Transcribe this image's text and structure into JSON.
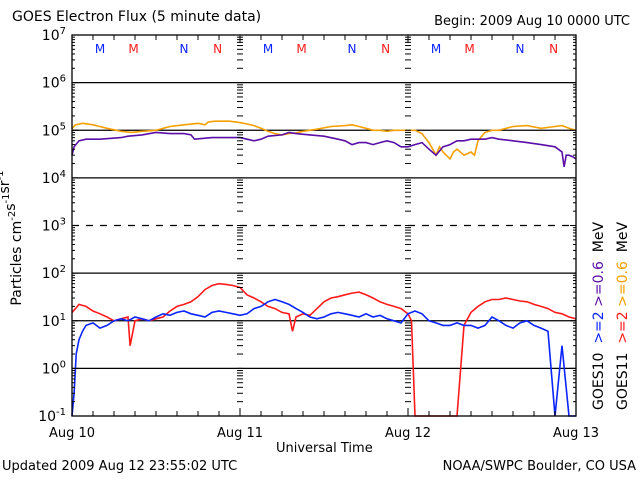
{
  "header": {
    "title": "GOES Electron Flux (5 minute data)",
    "begin": "Begin: 2009 Aug 10 0000 UTC"
  },
  "footer": {
    "updated": "Updated 2009 Aug 12 23:55:02 UTC",
    "credit": "NOAA/SWPC Boulder, CO USA"
  },
  "chart_data": {
    "type": "line",
    "title": "GOES Electron Flux (5 minute data)",
    "xlabel": "Universal Time",
    "ylabel": "Particles cm⁻²s⁻¹sr⁻¹",
    "yscale": "log",
    "ylim": [
      0.1,
      10000000
    ],
    "xlim": [
      0,
      72
    ],
    "x_unit": "hours since 2009 Aug 10 0000 UTC",
    "x_ticks": [
      {
        "x": 0,
        "label": "Aug 10"
      },
      {
        "x": 24,
        "label": "Aug 11"
      },
      {
        "x": 48,
        "label": "Aug 12"
      },
      {
        "x": 72,
        "label": "Aug 13"
      }
    ],
    "y_ticks": [
      {
        "exp": 7,
        "label": "10",
        "sup": "7"
      },
      {
        "exp": 6,
        "label": "10",
        "sup": "6"
      },
      {
        "exp": 5,
        "label": "10",
        "sup": "5"
      },
      {
        "exp": 4,
        "label": "10",
        "sup": "4"
      },
      {
        "exp": 3,
        "label": "10",
        "sup": "3"
      },
      {
        "exp": 2,
        "label": "10",
        "sup": "2"
      },
      {
        "exp": 1,
        "label": "10",
        "sup": "1"
      },
      {
        "exp": 0,
        "label": "10",
        "sup": "0"
      },
      {
        "exp": -1,
        "label": "10",
        "sup": "-1"
      }
    ],
    "grid_exps_solid": [
      6,
      5,
      4,
      2,
      1,
      0
    ],
    "grid_exps_dashed": [
      3
    ],
    "markers": [
      {
        "x": 4.0,
        "label": "M",
        "color": "#0a24ff"
      },
      {
        "x": 8.8,
        "label": "M",
        "color": "#ff1a1a"
      },
      {
        "x": 16.0,
        "label": "N",
        "color": "#0a24ff"
      },
      {
        "x": 20.8,
        "label": "N",
        "color": "#ff1a1a"
      },
      {
        "x": 28.0,
        "label": "M",
        "color": "#0a24ff"
      },
      {
        "x": 32.8,
        "label": "M",
        "color": "#ff1a1a"
      },
      {
        "x": 40.0,
        "label": "N",
        "color": "#0a24ff"
      },
      {
        "x": 44.8,
        "label": "N",
        "color": "#ff1a1a"
      },
      {
        "x": 52.0,
        "label": "M",
        "color": "#0a24ff"
      },
      {
        "x": 56.8,
        "label": "M",
        "color": "#ff1a1a"
      },
      {
        "x": 64.0,
        "label": "N",
        "color": "#0a24ff"
      },
      {
        "x": 68.8,
        "label": "N",
        "color": "#ff1a1a"
      }
    ],
    "legend": [
      {
        "label": "GOES10",
        "color": "#000000"
      },
      {
        "label": ">=2",
        "color": "#0a24ff"
      },
      {
        "label": ">=0.6",
        "color": "#5a0fa8"
      },
      {
        "label": "MeV",
        "color": "#000000"
      },
      {
        "label": "GOES11",
        "color": "#000000"
      },
      {
        "label": ">=2",
        "color": "#ff1a1a"
      },
      {
        "label": ">=0.6",
        "color": "#f5a000"
      },
      {
        "label": "MeV",
        "color": "#000000"
      }
    ],
    "legend_lines": [
      [
        {
          "t": "GOES10",
          "c": "#000000"
        },
        {
          "t": "  "
        },
        {
          "t": ">=2",
          "c": "#0a24ff"
        },
        {
          "t": " "
        },
        {
          "t": ">=0.6",
          "c": "#5a0fa8"
        },
        {
          "t": "  "
        },
        {
          "t": "MeV",
          "c": "#000000"
        }
      ],
      [
        {
          "t": "GOES11",
          "c": "#000000"
        },
        {
          "t": "  "
        },
        {
          "t": ">=2",
          "c": "#ff1a1a"
        },
        {
          "t": " "
        },
        {
          "t": ">=0.6",
          "c": "#f5a000"
        },
        {
          "t": "  "
        },
        {
          "t": "MeV",
          "c": "#000000"
        }
      ]
    ],
    "legend_placement": "right (vertical)",
    "series": [
      {
        "name": "GOES11 >=0.6 MeV",
        "color": "#f5a000",
        "x": [
          0,
          0.5,
          1.5,
          3,
          5,
          7,
          8.5,
          10,
          12,
          14,
          16,
          18,
          19,
          19.5,
          20.5,
          22.5,
          24,
          25,
          26,
          27,
          28,
          29,
          30,
          31,
          32,
          33,
          35,
          37,
          39,
          40,
          41,
          42,
          43,
          44,
          45,
          46,
          47,
          49,
          50,
          51,
          52,
          52.5,
          53,
          54,
          54.5,
          55,
          56,
          57,
          57.5,
          58,
          59,
          60,
          61,
          63,
          65,
          67,
          69,
          70,
          71,
          72
        ],
        "y": [
          110000.0,
          130000.0,
          140000.0,
          130000.0,
          110000.0,
          95000.0,
          90000.0,
          95000.0,
          100000.0,
          120000.0,
          130000.0,
          140000.0,
          130000.0,
          150000.0,
          155000.0,
          155000.0,
          145000.0,
          135000.0,
          125000.0,
          110000.0,
          95000.0,
          85000.0,
          80000.0,
          85000.0,
          88000.0,
          95000.0,
          105000.0,
          120000.0,
          125000.0,
          130000.0,
          120000.0,
          110000.0,
          100000.0,
          100000.0,
          95000.0,
          100000.0,
          100000.0,
          100000.0,
          85000.0,
          55000.0,
          30000.0,
          45000.0,
          35000.0,
          25000.0,
          35000.0,
          40000.0,
          30000.0,
          35000.0,
          30000.0,
          60000.0,
          90000.0,
          100000.0,
          100000.0,
          120000.0,
          125000.0,
          110000.0,
          120000.0,
          125000.0,
          110000.0,
          100000.0
        ]
      },
      {
        "name": "GOES10 >=0.6 MeV",
        "color": "#5a0fa8",
        "x": [
          0,
          0.3,
          1,
          2,
          4,
          7,
          8,
          10,
          12,
          14,
          16,
          17,
          17.5,
          20,
          22,
          24,
          25,
          26,
          27,
          28,
          30,
          31,
          32,
          34,
          36,
          38,
          39,
          40,
          41,
          42,
          43,
          44,
          45,
          46,
          47,
          48,
          49,
          50,
          51,
          52,
          53,
          54,
          55,
          56,
          57,
          58,
          59,
          60,
          61,
          63,
          65,
          67,
          69,
          70,
          70.3,
          70.6,
          71,
          71.5,
          72
        ],
        "y": [
          30000.0,
          45000.0,
          60000.0,
          65000.0,
          65000.0,
          70000.0,
          75000.0,
          80000.0,
          90000.0,
          85000.0,
          85000.0,
          80000.0,
          65000.0,
          70000.0,
          70000.0,
          70000.0,
          65000.0,
          60000.0,
          65000.0,
          75000.0,
          80000.0,
          90000.0,
          85000.0,
          80000.0,
          75000.0,
          65000.0,
          60000.0,
          50000.0,
          55000.0,
          55000.0,
          50000.0,
          55000.0,
          60000.0,
          55000.0,
          45000.0,
          45000.0,
          50000.0,
          55000.0,
          40000.0,
          30000.0,
          45000.0,
          50000.0,
          60000.0,
          60000.0,
          65000.0,
          65000.0,
          65000.0,
          70000.0,
          65000.0,
          60000.0,
          55000.0,
          50000.0,
          45000.0,
          35000.0,
          17000.0,
          30000.0,
          30000.0,
          28000.0,
          25000.0
        ]
      },
      {
        "name": "GOES11 >=2 MeV",
        "color": "#ff1a1a",
        "x": [
          0,
          0.5,
          1,
          2,
          3,
          4,
          5,
          6,
          7,
          8,
          8.3,
          9,
          10,
          11,
          12,
          13,
          14,
          15,
          16,
          17,
          18,
          19,
          20,
          21,
          22,
          23,
          24,
          25,
          26,
          27,
          28,
          29,
          30,
          31,
          31.5,
          32,
          33,
          34,
          35,
          36,
          37,
          38,
          39,
          40,
          41,
          42,
          43,
          44,
          45,
          46,
          47,
          48,
          48.5,
          49,
          50,
          51,
          52,
          53,
          54,
          55,
          56,
          57,
          58,
          59,
          60,
          61,
          62,
          63,
          64,
          65,
          66,
          67,
          68,
          69,
          70,
          71,
          72
        ],
        "y": [
          15,
          18,
          22,
          20,
          16,
          14,
          12,
          10,
          11,
          12,
          3,
          10,
          11,
          10,
          11,
          12,
          16,
          20,
          22,
          25,
          32,
          45,
          55,
          60,
          58,
          55,
          50,
          35,
          30,
          25,
          20,
          18,
          15,
          14,
          6,
          12,
          14,
          13,
          18,
          25,
          30,
          32,
          35,
          38,
          40,
          35,
          30,
          25,
          22,
          20,
          18,
          14,
          10,
          0.1,
          0.1,
          0.1,
          0.1,
          0.1,
          0.1,
          0.1,
          8,
          15,
          20,
          25,
          28,
          28,
          30,
          28,
          26,
          25,
          22,
          20,
          18,
          15,
          14,
          12,
          11
        ]
      },
      {
        "name": "GOES10 >=2 MeV",
        "color": "#0a24ff",
        "x": [
          0,
          0.3,
          0.6,
          1,
          1.5,
          2,
          3,
          4,
          5,
          6,
          7,
          8,
          9,
          10,
          11,
          12,
          13,
          14,
          15,
          16,
          17,
          18,
          19,
          20,
          21,
          22,
          23,
          24,
          25,
          26,
          27,
          28,
          29,
          30,
          31,
          32,
          33,
          34,
          35,
          36,
          37,
          38,
          39,
          40,
          41,
          42,
          43,
          44,
          45,
          46,
          47,
          48,
          49,
          50,
          51,
          52,
          53,
          54,
          55,
          56,
          57,
          58,
          59,
          60,
          61,
          62,
          63,
          64,
          65,
          66,
          67,
          68,
          69,
          70,
          71,
          72
        ],
        "y": [
          0.1,
          0.3,
          2,
          4,
          6,
          8,
          9,
          7,
          8,
          10,
          11,
          10,
          12,
          11,
          10,
          12,
          14,
          13,
          15,
          16,
          14,
          13,
          12,
          15,
          16,
          15,
          14,
          13,
          14,
          18,
          20,
          25,
          28,
          25,
          22,
          18,
          15,
          12,
          11,
          12,
          14,
          15,
          14,
          13,
          12,
          14,
          12,
          13,
          11,
          10,
          9,
          14,
          16,
          14,
          10,
          9,
          8,
          8,
          9,
          8,
          8,
          7,
          8,
          12,
          10,
          8,
          7,
          9,
          10,
          8,
          7,
          6,
          0.1,
          3,
          0.1,
          0.1
        ]
      }
    ]
  }
}
